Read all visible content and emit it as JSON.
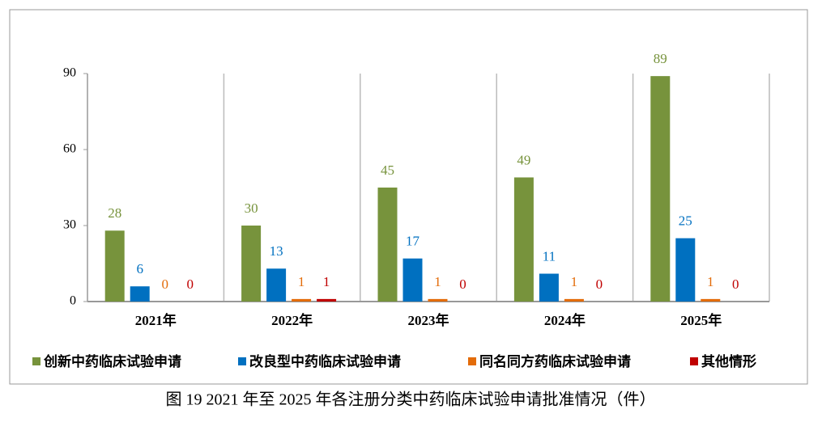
{
  "chart_data": {
    "type": "bar",
    "title": "图 19   2021 年至 2025 年各注册分类中药临床试验申请批准情况（件）",
    "categories": [
      "2021年",
      "2022年",
      "2023年",
      "2024年",
      "2025年"
    ],
    "series": [
      {
        "name": "创新中药临床试验申请",
        "color": "#77933c",
        "values": [
          28,
          30,
          45,
          49,
          89
        ]
      },
      {
        "name": "改良型中药临床试验申请",
        "color": "#0070c0",
        "values": [
          6,
          13,
          17,
          11,
          25
        ]
      },
      {
        "name": "同名同方药临床试验申请",
        "color": "#e36c0a",
        "values": [
          0,
          1,
          1,
          1,
          1
        ]
      },
      {
        "name": "其他情形",
        "color": "#c00000",
        "values": [
          0,
          1,
          0,
          0,
          0
        ]
      }
    ],
    "ylim": [
      0,
      90
    ],
    "yticks": [
      0,
      30,
      60,
      90
    ],
    "grid": false
  }
}
